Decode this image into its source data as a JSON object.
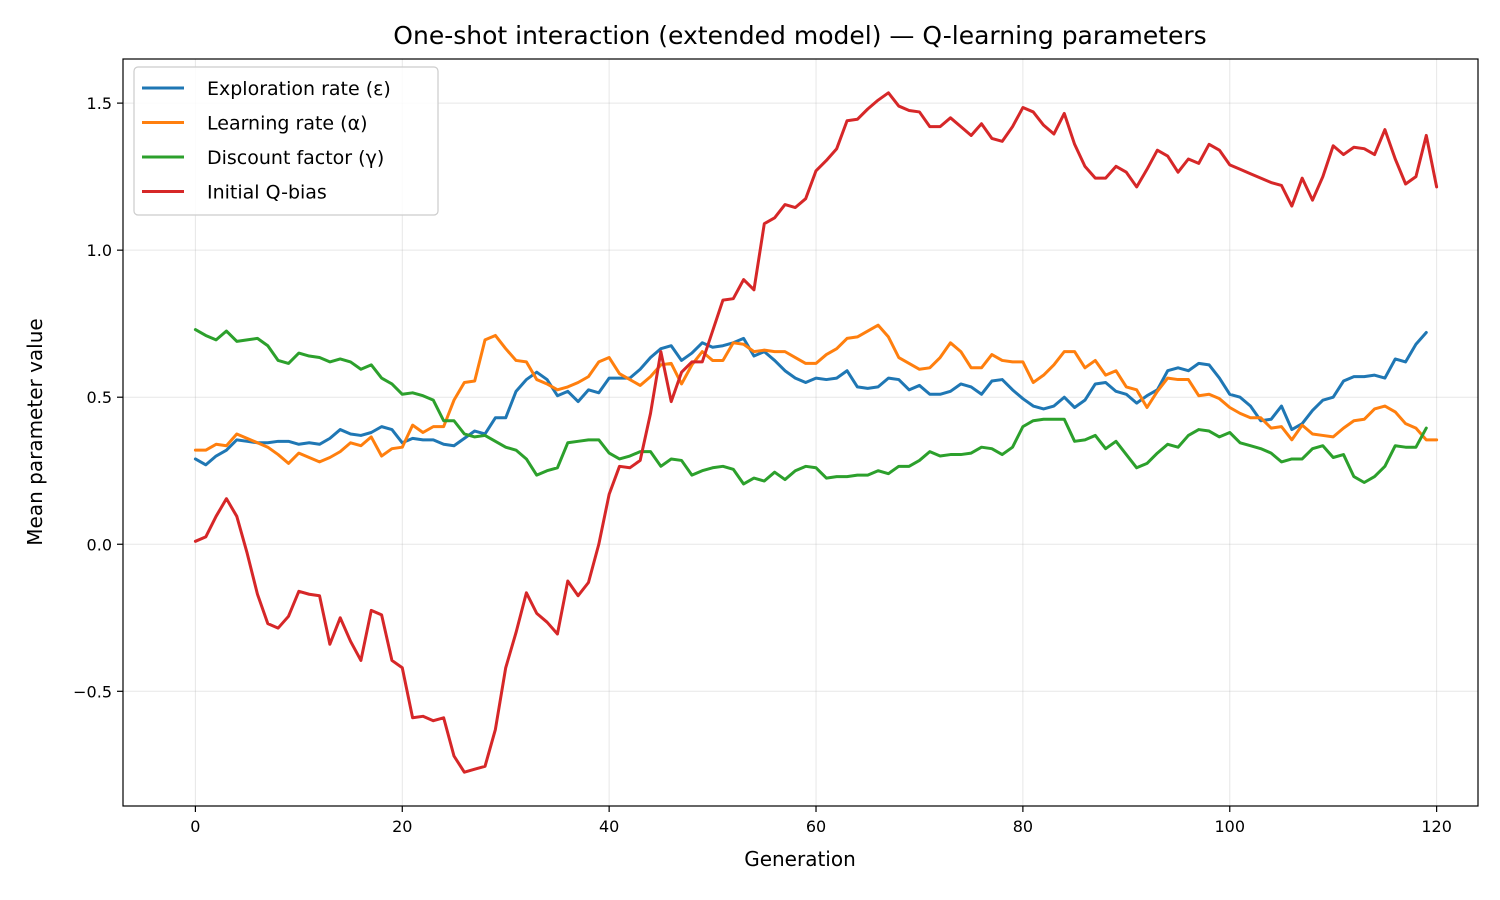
{
  "chart_data": {
    "type": "line",
    "title": "One-shot interaction (extended model) — Q-learning parameters",
    "xlabel": "Generation",
    "ylabel": "Mean parameter value",
    "xlim": [
      -7,
      124
    ],
    "ylim": [
      -0.89,
      1.65
    ],
    "xticks": [
      0,
      20,
      40,
      60,
      80,
      100,
      120
    ],
    "yticks": [
      -0.5,
      0.0,
      0.5,
      1.0,
      1.5
    ],
    "xtick_labels": [
      "0",
      "20",
      "40",
      "60",
      "80",
      "100",
      "120"
    ],
    "ytick_labels": [
      "−0.5",
      "0.0",
      "0.5",
      "1.0",
      "1.5"
    ],
    "grid": true,
    "legend_position": "top-left",
    "x_start": 0,
    "series": [
      {
        "name": "Exploration rate (ε)",
        "color": "#1f77b4",
        "values": [
          0.29,
          0.27,
          0.3,
          0.32,
          0.355,
          0.35,
          0.345,
          0.345,
          0.35,
          0.35,
          0.34,
          0.345,
          0.34,
          0.36,
          0.39,
          0.375,
          0.37,
          0.38,
          0.4,
          0.39,
          0.345,
          0.36,
          0.355,
          0.355,
          0.34,
          0.335,
          0.36,
          0.385,
          0.375,
          0.43,
          0.43,
          0.52,
          0.56,
          0.585,
          0.56,
          0.505,
          0.52,
          0.485,
          0.525,
          0.515,
          0.565,
          0.565,
          0.565,
          0.595,
          0.635,
          0.665,
          0.675,
          0.625,
          0.65,
          0.685,
          0.67,
          0.675,
          0.685,
          0.7,
          0.64,
          0.655,
          0.625,
          0.59,
          0.565,
          0.55,
          0.565,
          0.56,
          0.565,
          0.59,
          0.535,
          0.53,
          0.535,
          0.565,
          0.56,
          0.525,
          0.54,
          0.51,
          0.51,
          0.52,
          0.545,
          0.535,
          0.51,
          0.555,
          0.56,
          0.525,
          0.495,
          0.47,
          0.46,
          0.47,
          0.5,
          0.465,
          0.49,
          0.545,
          0.55,
          0.52,
          0.51,
          0.48,
          0.505,
          0.525,
          0.59,
          0.6,
          0.59,
          0.615,
          0.61,
          0.565,
          0.51,
          0.5,
          0.47,
          0.42,
          0.425,
          0.47,
          0.39,
          0.41,
          0.455,
          0.49,
          0.5,
          0.555,
          0.57,
          0.57,
          0.575,
          0.565,
          0.63,
          0.62,
          0.68,
          0.72
        ]
      },
      {
        "name": "Learning rate (α)",
        "color": "#ff7f0e",
        "values": [
          0.32,
          0.32,
          0.34,
          0.335,
          0.375,
          0.36,
          0.345,
          0.33,
          0.305,
          0.275,
          0.31,
          0.295,
          0.28,
          0.295,
          0.315,
          0.345,
          0.335,
          0.365,
          0.3,
          0.325,
          0.33,
          0.405,
          0.38,
          0.4,
          0.4,
          0.49,
          0.55,
          0.555,
          0.695,
          0.71,
          0.665,
          0.625,
          0.62,
          0.56,
          0.545,
          0.525,
          0.535,
          0.55,
          0.57,
          0.62,
          0.635,
          0.58,
          0.56,
          0.54,
          0.57,
          0.61,
          0.615,
          0.545,
          0.61,
          0.655,
          0.625,
          0.625,
          0.685,
          0.68,
          0.655,
          0.66,
          0.655,
          0.655,
          0.635,
          0.615,
          0.615,
          0.645,
          0.665,
          0.7,
          0.705,
          0.725,
          0.745,
          0.705,
          0.635,
          0.615,
          0.595,
          0.6,
          0.635,
          0.685,
          0.655,
          0.6,
          0.6,
          0.645,
          0.625,
          0.62,
          0.62,
          0.55,
          0.575,
          0.61,
          0.655,
          0.655,
          0.6,
          0.625,
          0.575,
          0.59,
          0.535,
          0.525,
          0.465,
          0.52,
          0.565,
          0.56,
          0.56,
          0.505,
          0.51,
          0.495,
          0.465,
          0.445,
          0.43,
          0.43,
          0.395,
          0.4,
          0.355,
          0.405,
          0.375,
          0.37,
          0.365,
          0.395,
          0.42,
          0.425,
          0.46,
          0.47,
          0.45,
          0.41,
          0.395,
          0.355,
          0.355
        ]
      },
      {
        "name": "Discount factor (γ)",
        "color": "#2ca02c",
        "values": [
          0.73,
          0.71,
          0.695,
          0.725,
          0.69,
          0.695,
          0.7,
          0.675,
          0.625,
          0.615,
          0.65,
          0.64,
          0.635,
          0.62,
          0.63,
          0.62,
          0.595,
          0.61,
          0.565,
          0.545,
          0.51,
          0.515,
          0.505,
          0.49,
          0.42,
          0.42,
          0.375,
          0.365,
          0.37,
          0.35,
          0.33,
          0.32,
          0.29,
          0.235,
          0.25,
          0.26,
          0.345,
          0.35,
          0.355,
          0.355,
          0.31,
          0.29,
          0.3,
          0.315,
          0.315,
          0.265,
          0.29,
          0.285,
          0.235,
          0.25,
          0.26,
          0.265,
          0.255,
          0.205,
          0.225,
          0.215,
          0.245,
          0.22,
          0.25,
          0.265,
          0.26,
          0.225,
          0.23,
          0.23,
          0.235,
          0.235,
          0.25,
          0.24,
          0.265,
          0.265,
          0.285,
          0.315,
          0.3,
          0.305,
          0.305,
          0.31,
          0.33,
          0.325,
          0.305,
          0.33,
          0.4,
          0.42,
          0.425,
          0.425,
          0.425,
          0.35,
          0.355,
          0.37,
          0.325,
          0.35,
          0.305,
          0.26,
          0.275,
          0.31,
          0.34,
          0.33,
          0.37,
          0.39,
          0.385,
          0.365,
          0.38,
          0.345,
          0.335,
          0.325,
          0.31,
          0.28,
          0.29,
          0.29,
          0.325,
          0.335,
          0.295,
          0.305,
          0.23,
          0.21,
          0.23,
          0.265,
          0.335,
          0.33,
          0.33,
          0.395
        ]
      },
      {
        "name": "Initial Q-bias",
        "color": "#d62728",
        "values": [
          0.01,
          0.025,
          0.095,
          0.155,
          0.095,
          -0.03,
          -0.17,
          -0.27,
          -0.285,
          -0.245,
          -0.16,
          -0.17,
          -0.175,
          -0.34,
          -0.25,
          -0.33,
          -0.395,
          -0.225,
          -0.24,
          -0.395,
          -0.42,
          -0.59,
          -0.585,
          -0.6,
          -0.59,
          -0.72,
          -0.775,
          -0.765,
          -0.755,
          -0.63,
          -0.42,
          -0.3,
          -0.165,
          -0.235,
          -0.265,
          -0.305,
          -0.125,
          -0.175,
          -0.13,
          0.0,
          0.17,
          0.265,
          0.26,
          0.285,
          0.445,
          0.655,
          0.485,
          0.585,
          0.62,
          0.62,
          0.725,
          0.83,
          0.835,
          0.9,
          0.865,
          1.09,
          1.11,
          1.155,
          1.145,
          1.175,
          1.27,
          1.305,
          1.345,
          1.44,
          1.445,
          1.48,
          1.51,
          1.535,
          1.49,
          1.475,
          1.47,
          1.42,
          1.42,
          1.45,
          1.42,
          1.39,
          1.43,
          1.38,
          1.37,
          1.42,
          1.485,
          1.47,
          1.425,
          1.395,
          1.465,
          1.36,
          1.285,
          1.245,
          1.245,
          1.285,
          1.265,
          1.215,
          1.275,
          1.34,
          1.32,
          1.265,
          1.31,
          1.295,
          1.36,
          1.34,
          1.29,
          1.275,
          1.26,
          1.245,
          1.23,
          1.22,
          1.15,
          1.245,
          1.17,
          1.25,
          1.355,
          1.325,
          1.35,
          1.345,
          1.325,
          1.41,
          1.31,
          1.225,
          1.25,
          1.39,
          1.215
        ]
      }
    ]
  }
}
